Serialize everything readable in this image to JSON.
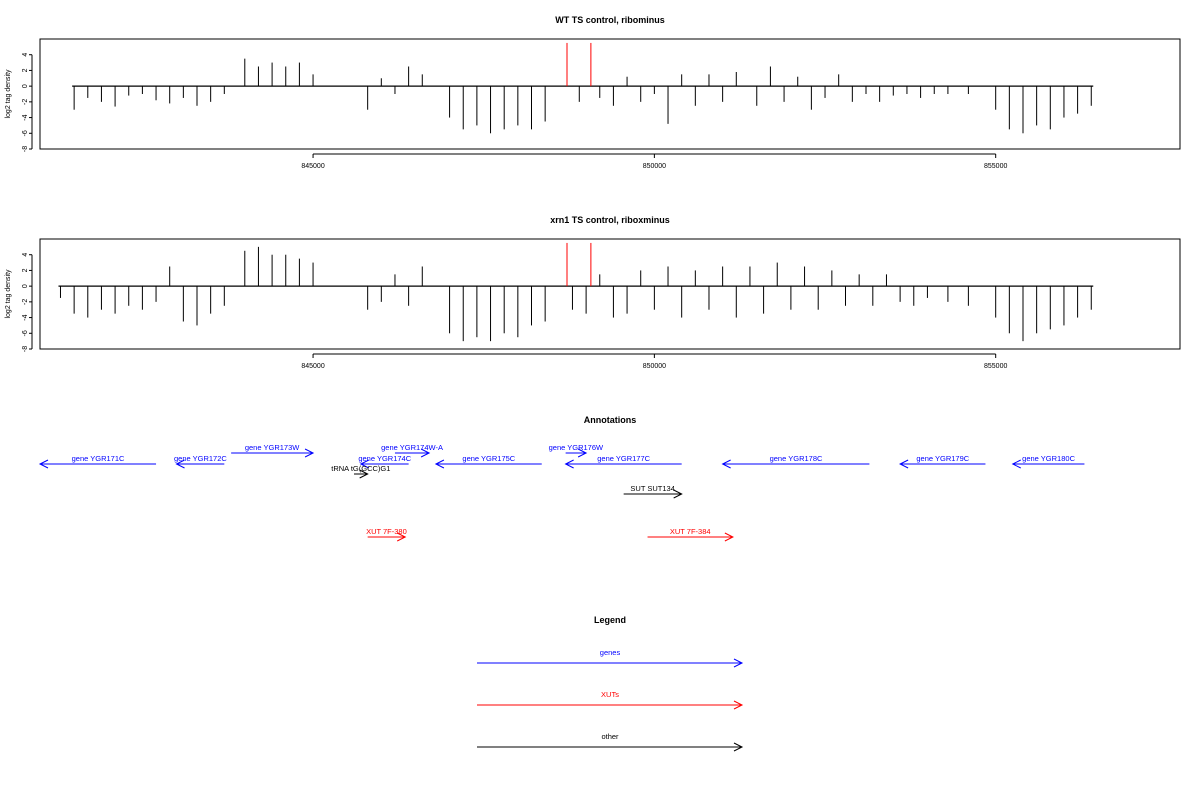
{
  "chart_data": [
    {
      "type": "bar",
      "title": "WT TS control, ribominus",
      "ylabel": "log2 tag density",
      "xticks": [
        845000,
        850000,
        855000
      ],
      "xlim": [
        841000,
        857700
      ],
      "ylim": [
        -8,
        6
      ],
      "yticks": [
        -8,
        -6,
        -4,
        -2,
        0,
        2,
        4
      ],
      "series": [
        {
          "values": [
            [
              841500,
              -3
            ],
            [
              841700,
              -1.5
            ],
            [
              841900,
              -2
            ],
            [
              842100,
              -2.6
            ],
            [
              842300,
              -1.2
            ],
            [
              842500,
              -1
            ],
            [
              842700,
              -1.8
            ],
            [
              842900,
              -2.2
            ],
            [
              843100,
              -1.5
            ],
            [
              843300,
              -2.5
            ],
            [
              843500,
              -2
            ],
            [
              843700,
              -1
            ],
            [
              844000,
              3.5
            ],
            [
              844200,
              2.5
            ],
            [
              844400,
              3
            ],
            [
              844600,
              2.5
            ],
            [
              844800,
              3
            ],
            [
              845000,
              1.5
            ],
            [
              845800,
              -3
            ],
            [
              846000,
              1
            ],
            [
              846200,
              -1
            ],
            [
              846400,
              2.5
            ],
            [
              846600,
              1.5
            ],
            [
              847000,
              -4
            ],
            [
              847200,
              -5.5
            ],
            [
              847400,
              -5
            ],
            [
              847600,
              -6
            ],
            [
              847800,
              -5.5
            ],
            [
              848000,
              -5
            ],
            [
              848200,
              -5.5
            ],
            [
              848400,
              -4.5
            ],
            [
              848900,
              -2
            ],
            [
              849200,
              -1.5
            ],
            [
              849400,
              -2.5
            ],
            [
              849600,
              1.2
            ],
            [
              849800,
              -2
            ],
            [
              850000,
              -1
            ],
            [
              850200,
              -4.8
            ],
            [
              850400,
              1.5
            ],
            [
              850600,
              -2.5
            ],
            [
              850800,
              1.5
            ],
            [
              851000,
              -2
            ],
            [
              851200,
              1.8
            ],
            [
              851500,
              -2.5
            ],
            [
              851700,
              2.5
            ],
            [
              851900,
              -2
            ],
            [
              852100,
              1.2
            ],
            [
              852300,
              -3
            ],
            [
              852500,
              -1.5
            ],
            [
              852700,
              1.5
            ],
            [
              852900,
              -2
            ],
            [
              853100,
              -1
            ],
            [
              853300,
              -2
            ],
            [
              853500,
              -1.2
            ],
            [
              853700,
              -1
            ],
            [
              853900,
              -1.5
            ],
            [
              854100,
              -1
            ],
            [
              854300,
              -1
            ],
            [
              854600,
              -1
            ],
            [
              855000,
              -3
            ],
            [
              855200,
              -5.5
            ],
            [
              855400,
              -6
            ],
            [
              855600,
              -5
            ],
            [
              855800,
              -5.5
            ],
            [
              856000,
              -4
            ],
            [
              856200,
              -3.5
            ],
            [
              856400,
              -2.5
            ]
          ]
        },
        {
          "name": "highlight",
          "color": "#ff0000",
          "values": [
            [
              848720,
              5.5
            ],
            [
              849070,
              5.5
            ]
          ]
        }
      ]
    },
    {
      "type": "bar",
      "title": "xrn1 TS control, riboxminus",
      "ylabel": "log2 tag density",
      "xticks": [
        845000,
        850000,
        855000
      ],
      "xlim": [
        841000,
        857700
      ],
      "ylim": [
        -8,
        6
      ],
      "yticks": [
        -8,
        -6,
        -4,
        -2,
        0,
        2,
        4
      ],
      "series": [
        {
          "values": [
            [
              841300,
              -1.5
            ],
            [
              841500,
              -3.5
            ],
            [
              841700,
              -4
            ],
            [
              841900,
              -3
            ],
            [
              842100,
              -3.5
            ],
            [
              842300,
              -2.5
            ],
            [
              842500,
              -3
            ],
            [
              842700,
              -2
            ],
            [
              842900,
              2.5
            ],
            [
              843100,
              -4.5
            ],
            [
              843300,
              -5
            ],
            [
              843500,
              -3.5
            ],
            [
              843700,
              -2.5
            ],
            [
              844000,
              4.5
            ],
            [
              844200,
              5
            ],
            [
              844400,
              4
            ],
            [
              844600,
              4
            ],
            [
              844800,
              3.5
            ],
            [
              845000,
              3
            ],
            [
              845800,
              -3
            ],
            [
              846000,
              -2
            ],
            [
              846200,
              1.5
            ],
            [
              846400,
              -2.5
            ],
            [
              846600,
              2.5
            ],
            [
              847000,
              -6
            ],
            [
              847200,
              -7
            ],
            [
              847400,
              -6.5
            ],
            [
              847600,
              -7
            ],
            [
              847800,
              -6
            ],
            [
              848000,
              -6.5
            ],
            [
              848200,
              -5
            ],
            [
              848400,
              -4.5
            ],
            [
              848800,
              -3
            ],
            [
              849000,
              -3.5
            ],
            [
              849200,
              1.5
            ],
            [
              849400,
              -4
            ],
            [
              849600,
              -3.5
            ],
            [
              849800,
              2
            ],
            [
              850000,
              -3
            ],
            [
              850200,
              2.5
            ],
            [
              850400,
              -4
            ],
            [
              850600,
              2
            ],
            [
              850800,
              -3
            ],
            [
              851000,
              2.5
            ],
            [
              851200,
              -4
            ],
            [
              851400,
              2.5
            ],
            [
              851600,
              -3.5
            ],
            [
              851800,
              3
            ],
            [
              852000,
              -3
            ],
            [
              852200,
              2.5
            ],
            [
              852400,
              -3
            ],
            [
              852600,
              2
            ],
            [
              852800,
              -2.5
            ],
            [
              853000,
              1.5
            ],
            [
              853200,
              -2.5
            ],
            [
              853400,
              1.5
            ],
            [
              853600,
              -2
            ],
            [
              853800,
              -2.5
            ],
            [
              854000,
              -1.5
            ],
            [
              854300,
              -2
            ],
            [
              854600,
              -2.5
            ],
            [
              855000,
              -4
            ],
            [
              855200,
              -6
            ],
            [
              855400,
              -7
            ],
            [
              855600,
              -6
            ],
            [
              855800,
              -5.5
            ],
            [
              856000,
              -5
            ],
            [
              856200,
              -4
            ],
            [
              856400,
              -3
            ]
          ]
        },
        {
          "name": "highlight",
          "color": "#ff0000",
          "values": [
            [
              848720,
              5.5
            ],
            [
              849070,
              5.5
            ]
          ]
        }
      ]
    }
  ],
  "annotations": {
    "title": "Annotations",
    "items": [
      {
        "label": "gene YGR171C",
        "kind": "gene",
        "dir": "left",
        "start": 841000,
        "end": 842700,
        "row": 1
      },
      {
        "label": "gene YGR172C",
        "kind": "gene",
        "dir": "left",
        "start": 843000,
        "end": 843700,
        "row": 1
      },
      {
        "label": "gene YGR173W",
        "kind": "gene",
        "dir": "right",
        "start": 843800,
        "end": 845000,
        "row": 0
      },
      {
        "label": "gene YGR174C",
        "kind": "gene",
        "dir": "left",
        "start": 845700,
        "end": 846400,
        "row": 1
      },
      {
        "label": "gene YGR174W-A",
        "kind": "gene",
        "dir": "right",
        "start": 846200,
        "end": 846700,
        "row": 0
      },
      {
        "label": "tRNA tG(GCC)G1",
        "kind": "other",
        "dir": "right",
        "start": 845600,
        "end": 845800,
        "row": 2
      },
      {
        "label": "gene YGR175C",
        "kind": "gene",
        "dir": "left",
        "start": 846800,
        "end": 848350,
        "row": 1
      },
      {
        "label": "gene YGR176W",
        "kind": "gene",
        "dir": "right",
        "start": 848700,
        "end": 849000,
        "row": 0
      },
      {
        "label": "gene YGR177C",
        "kind": "gene",
        "dir": "left",
        "start": 848700,
        "end": 850400,
        "row": 1
      },
      {
        "label": "SUT SUT134",
        "kind": "other",
        "dir": "right",
        "start": 849550,
        "end": 850400,
        "row": 3
      },
      {
        "label": "gene YGR178C",
        "kind": "gene",
        "dir": "left",
        "start": 851000,
        "end": 853150,
        "row": 1
      },
      {
        "label": "gene YGR179C",
        "kind": "gene",
        "dir": "left",
        "start": 853600,
        "end": 854850,
        "row": 1
      },
      {
        "label": "gene YGR180C",
        "kind": "gene",
        "dir": "left",
        "start": 855250,
        "end": 856300,
        "row": 1
      },
      {
        "label": "XUT 7F-380",
        "kind": "xut",
        "dir": "right",
        "start": 845800,
        "end": 846350,
        "row": 4
      },
      {
        "label": "XUT 7F-384",
        "kind": "xut",
        "dir": "right",
        "start": 849900,
        "end": 851150,
        "row": 4
      }
    ]
  },
  "legend": {
    "title": "Legend",
    "items": [
      {
        "label": "genes",
        "color": "#0000ff"
      },
      {
        "label": "XUTs",
        "color": "#ff0000"
      },
      {
        "label": "other",
        "color": "#000000"
      }
    ]
  },
  "colors": {
    "gene": "#0000ff",
    "xut": "#ff0000",
    "other": "#000000"
  }
}
